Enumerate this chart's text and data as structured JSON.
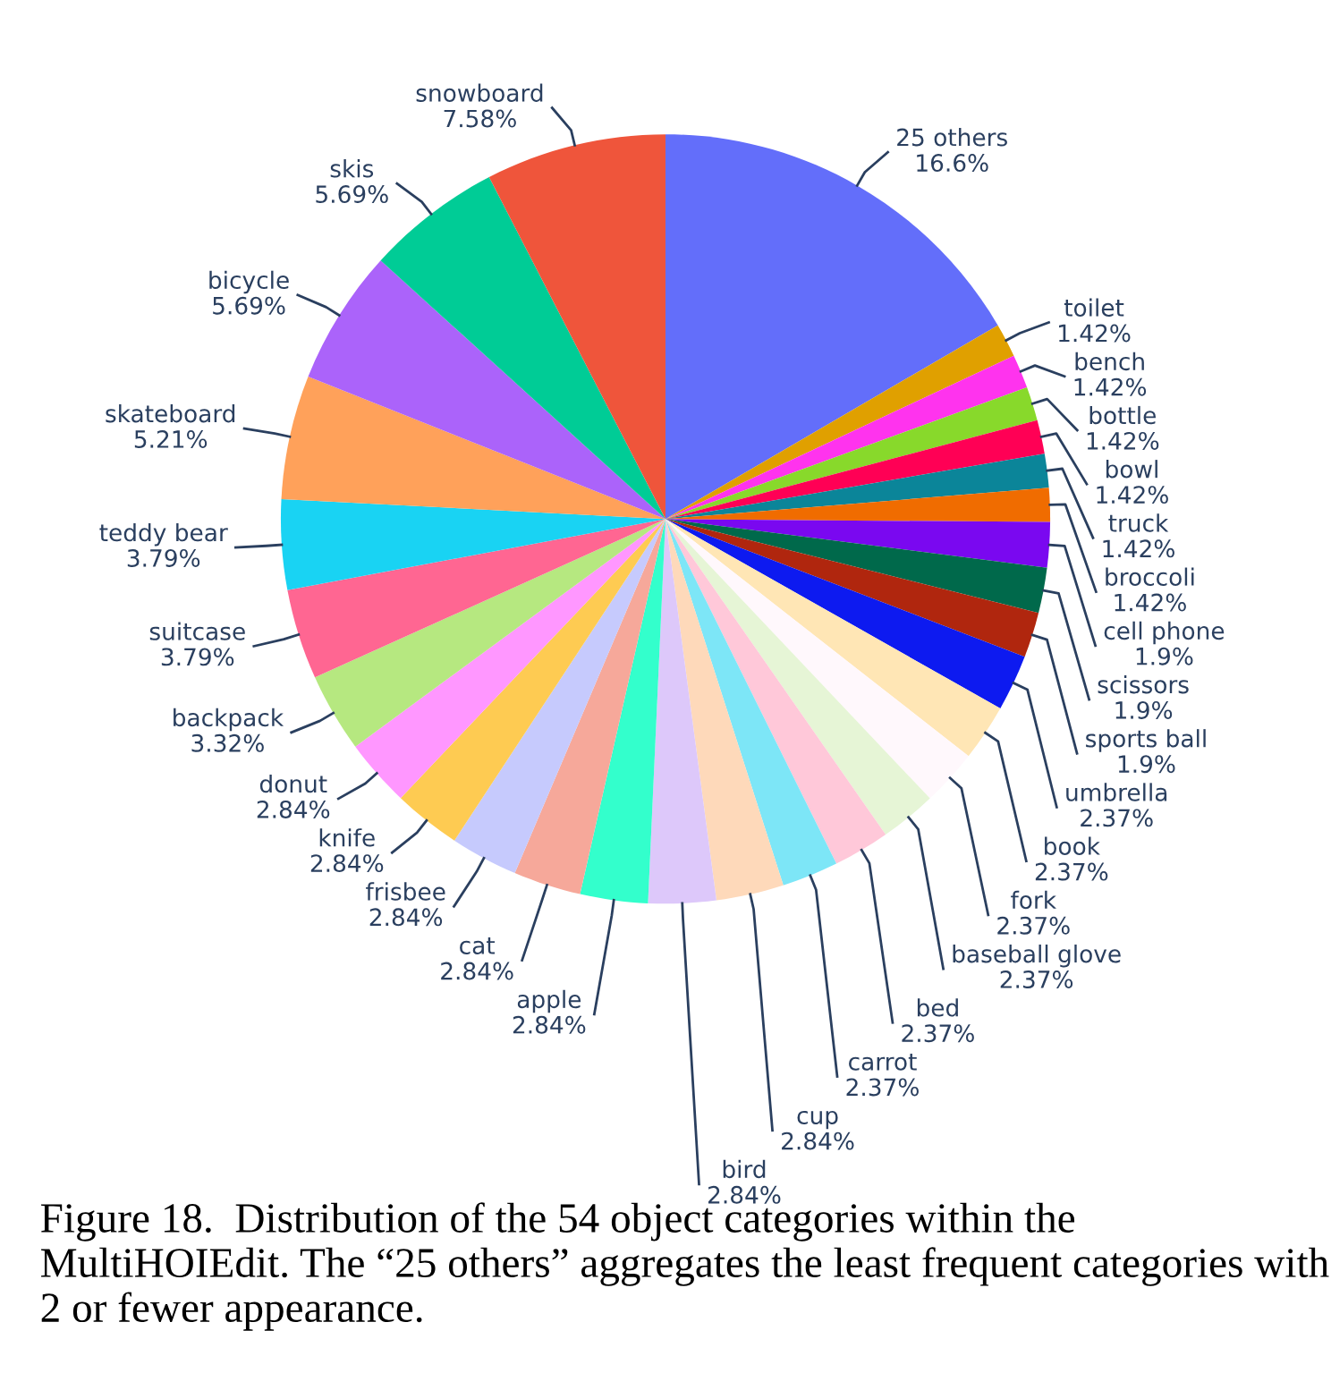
{
  "chart_data": {
    "type": "pie",
    "categories": [
      "25 others",
      "toilet",
      "bench",
      "bottle",
      "bowl",
      "truck",
      "broccoli",
      "cell phone",
      "scissors",
      "sports ball",
      "umbrella",
      "book",
      "fork",
      "baseball glove",
      "bed",
      "carrot",
      "cup",
      "bird",
      "apple",
      "cat",
      "frisbee",
      "knife",
      "donut",
      "backpack",
      "suitcase",
      "teddy bear",
      "skateboard",
      "bicycle",
      "skis",
      "snowboard"
    ],
    "values": [
      16.6,
      1.42,
      1.42,
      1.42,
      1.42,
      1.42,
      1.42,
      1.9,
      1.9,
      1.9,
      2.37,
      2.37,
      2.37,
      2.37,
      2.37,
      2.37,
      2.84,
      2.84,
      2.84,
      2.84,
      2.84,
      2.84,
      2.84,
      3.32,
      3.79,
      3.79,
      5.21,
      5.69,
      5.69,
      7.58
    ],
    "colors": [
      "#636efa",
      "#e0a000",
      "#ff33ee",
      "#88d92b",
      "#ff0055",
      "#0b8599",
      "#f06c00",
      "#7a08f0",
      "#00694b",
      "#b0260e",
      "#0d1af0",
      "#ffe6b5",
      "#fff8fc",
      "#e6f5d6",
      "#ffc8d9",
      "#7de6f7",
      "#fed9ba",
      "#ddc8fa",
      "#33ffcc",
      "#f6a89a",
      "#c6cafd",
      "#fecb52",
      "#ff97ff",
      "#b6e880",
      "#ff6692",
      "#19d3f3",
      "#ffa15a",
      "#ab63fa",
      "#00cc96",
      "#ef553b"
    ],
    "value_labels": [
      "16.6%",
      "1.42%",
      "1.42%",
      "1.42%",
      "1.42%",
      "1.42%",
      "1.42%",
      "1.9%",
      "1.9%",
      "1.9%",
      "2.37%",
      "2.37%",
      "2.37%",
      "2.37%",
      "2.37%",
      "2.37%",
      "2.84%",
      "2.84%",
      "2.84%",
      "2.84%",
      "2.84%",
      "2.84%",
      "2.84%",
      "3.32%",
      "3.79%",
      "3.79%",
      "5.21%",
      "5.69%",
      "5.69%",
      "7.58%"
    ],
    "annotations": [
      "Figure 18.  Distribution of the 54 object categories within the MultiHOIEdit. The “25 others” aggregates the least frequent categories with 2 or fewer appearance."
    ]
  }
}
